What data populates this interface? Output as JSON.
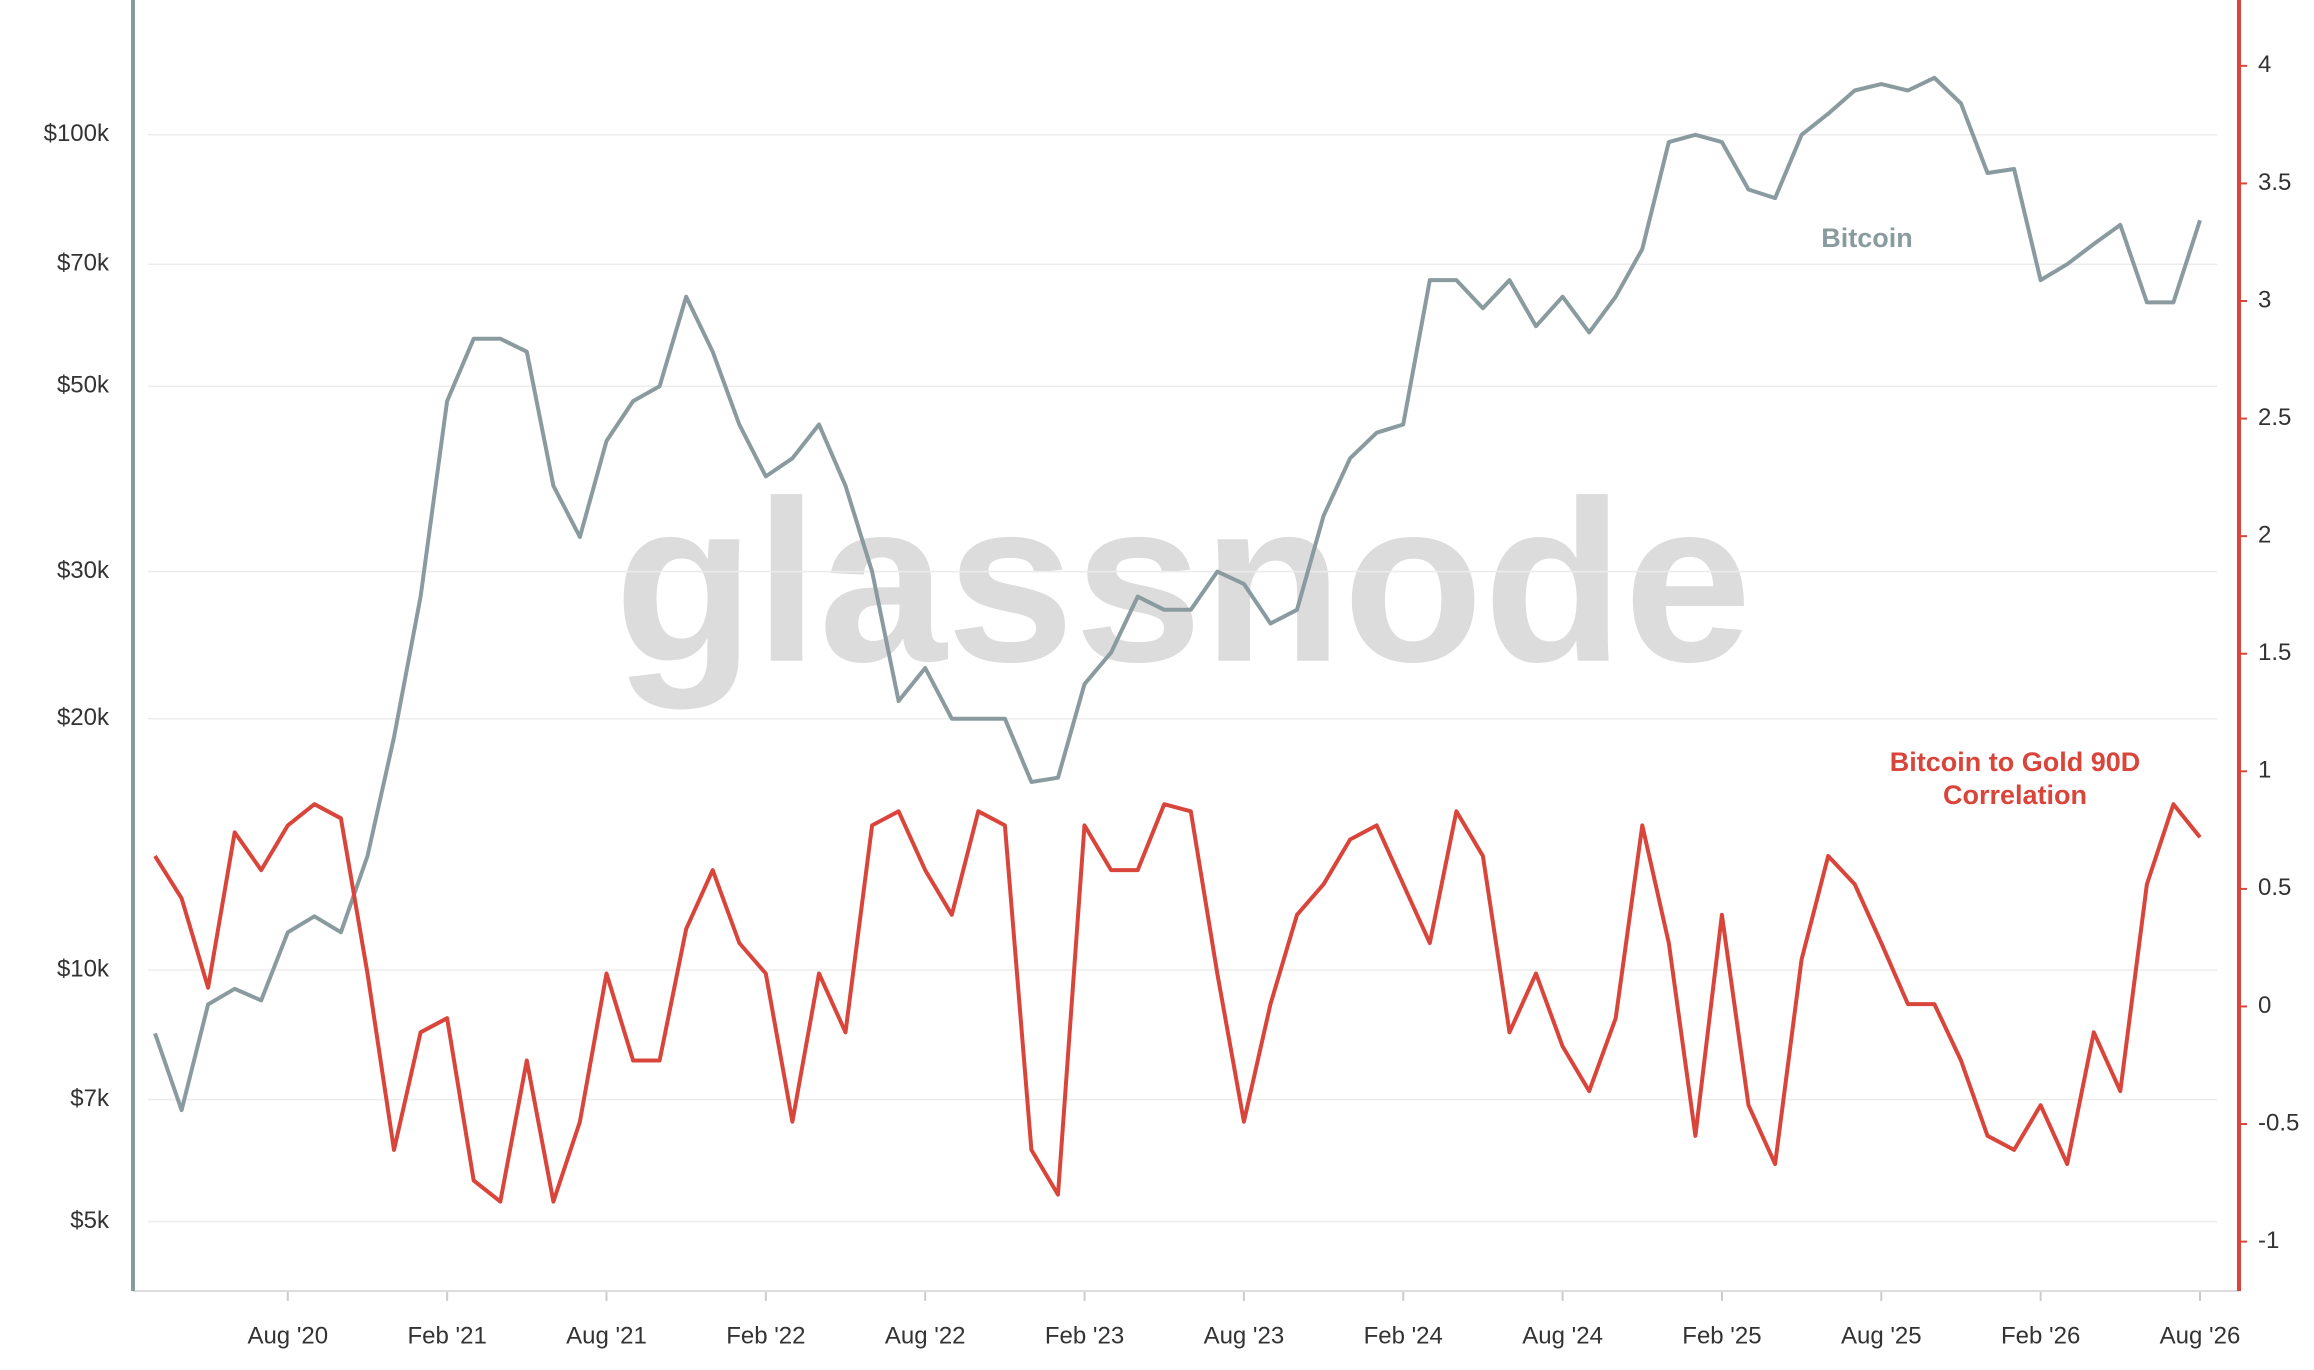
{
  "chart_data": {
    "type": "line",
    "watermark": "glassnode",
    "yscale": "log",
    "grid": true,
    "x": [
      "2020-03",
      "2020-04",
      "2020-05",
      "2020-06",
      "2020-07",
      "2020-08",
      "2020-09",
      "2020-10",
      "2020-11",
      "2020-12",
      "2021-01",
      "2021-02",
      "2021-03",
      "2021-04",
      "2021-05",
      "2021-06",
      "2021-07",
      "2021-08",
      "2021-09",
      "2021-10",
      "2021-11",
      "2021-12",
      "2022-01",
      "2022-02",
      "2022-03",
      "2022-04",
      "2022-05",
      "2022-06",
      "2022-07",
      "2022-08",
      "2022-09",
      "2022-10",
      "2022-11",
      "2022-12",
      "2023-01",
      "2023-02",
      "2023-03",
      "2023-04",
      "2023-05",
      "2023-06",
      "2023-07",
      "2023-08",
      "2023-09",
      "2023-10",
      "2023-11",
      "2023-12",
      "2024-01",
      "2024-02",
      "2024-03",
      "2024-04",
      "2024-05",
      "2024-06",
      "2024-07",
      "2024-08",
      "2024-09",
      "2024-10",
      "2024-11",
      "2024-12",
      "2025-01",
      "2025-02",
      "2025-03",
      "2025-04",
      "2025-05",
      "2025-06",
      "2025-07",
      "2025-08",
      "2025-09",
      "2025-10",
      "2025-11",
      "2025-12",
      "2026-01",
      "2026-02",
      "2026-03",
      "2026-04",
      "2026-05",
      "2026-06",
      "2026-07",
      "2026-08"
    ],
    "xlim": [
      "2020-03",
      "2026-08"
    ],
    "xticks": [
      {
        "value": "2020-08",
        "label": "Aug '20"
      },
      {
        "value": "2021-02",
        "label": "Feb '21"
      },
      {
        "value": "2021-08",
        "label": "Aug '21"
      },
      {
        "value": "2022-02",
        "label": "Feb '22"
      },
      {
        "value": "2022-08",
        "label": "Aug '22"
      },
      {
        "value": "2023-02",
        "label": "Feb '23"
      },
      {
        "value": "2023-08",
        "label": "Aug '23"
      },
      {
        "value": "2024-02",
        "label": "Feb '24"
      },
      {
        "value": "2024-08",
        "label": "Aug '24"
      },
      {
        "value": "2025-02",
        "label": "Feb '25"
      },
      {
        "value": "2025-08",
        "label": "Aug '25"
      },
      {
        "value": "2026-02",
        "label": "Feb '26"
      },
      {
        "value": "2026-08",
        "label": "Aug '26"
      }
    ],
    "ylim": [
      4130,
      145000
    ],
    "yticks": [
      {
        "value": 5000,
        "label": "$5k"
      },
      {
        "value": 7000,
        "label": "$7k"
      },
      {
        "value": 10000,
        "label": "$10k"
      },
      {
        "value": 20000,
        "label": "$20k"
      },
      {
        "value": 30000,
        "label": "$30k"
      },
      {
        "value": 50000,
        "label": "$50k"
      },
      {
        "value": 70000,
        "label": "$70k"
      },
      {
        "value": 100000,
        "label": "$100k"
      }
    ],
    "y2lim": [
      -1.21,
      4.28
    ],
    "y2ticks": [
      -1,
      -0.5,
      0,
      0.5,
      1,
      1.5,
      2,
      2.5,
      3,
      3.5,
      4
    ],
    "series": [
      {
        "name": "Bitcoin",
        "color": "#8a9ba0",
        "axis": "y",
        "values": [
          8400,
          6800,
          9100,
          9500,
          9200,
          11100,
          11600,
          11100,
          13700,
          19000,
          28000,
          48000,
          57000,
          57000,
          55000,
          38000,
          33000,
          43000,
          48000,
          50000,
          64000,
          55000,
          45000,
          39000,
          41000,
          45000,
          38000,
          30000,
          21000,
          23000,
          20000,
          20000,
          20000,
          16800,
          17000,
          22000,
          24000,
          28000,
          27000,
          27000,
          30000,
          29000,
          26000,
          27000,
          35000,
          41000,
          44000,
          45000,
          67000,
          67000,
          62000,
          67000,
          59000,
          64000,
          58000,
          64000,
          73000,
          98000,
          100000,
          98000,
          86000,
          84000,
          100000,
          106000,
          113000,
          115000,
          113000,
          117000,
          109000,
          90000,
          91000,
          67000,
          70000,
          74000,
          78000,
          63000,
          63000,
          79000
        ]
      },
      {
        "name": "Bitcoin to Gold 90D Correlation",
        "color": "#d9453a",
        "axis": "y2",
        "values": [
          0.64,
          0.46,
          0.08,
          0.74,
          0.58,
          0.77,
          0.86,
          0.8,
          0.14,
          -0.61,
          -0.11,
          -0.05,
          -0.74,
          -0.83,
          -0.23,
          -0.83,
          -0.49,
          0.14,
          -0.23,
          -0.23,
          0.33,
          0.58,
          0.27,
          0.14,
          -0.49,
          0.14,
          -0.11,
          0.77,
          0.83,
          0.58,
          0.39,
          0.83,
          0.77,
          -0.61,
          -0.8,
          0.77,
          0.58,
          0.58,
          0.86,
          0.83,
          0.14,
          -0.49,
          0.01,
          0.39,
          0.52,
          0.71,
          0.77,
          0.52,
          0.27,
          0.83,
          0.64,
          -0.11,
          0.14,
          -0.17,
          -0.36,
          -0.05,
          0.77,
          0.27,
          -0.55,
          0.39,
          -0.42,
          -0.67,
          0.2,
          0.64,
          0.52,
          0.27,
          0.01,
          0.01,
          -0.23,
          -0.55,
          -0.61,
          -0.42,
          -0.67,
          -0.11,
          -0.36,
          0.52,
          0.86,
          0.72
        ]
      }
    ]
  }
}
